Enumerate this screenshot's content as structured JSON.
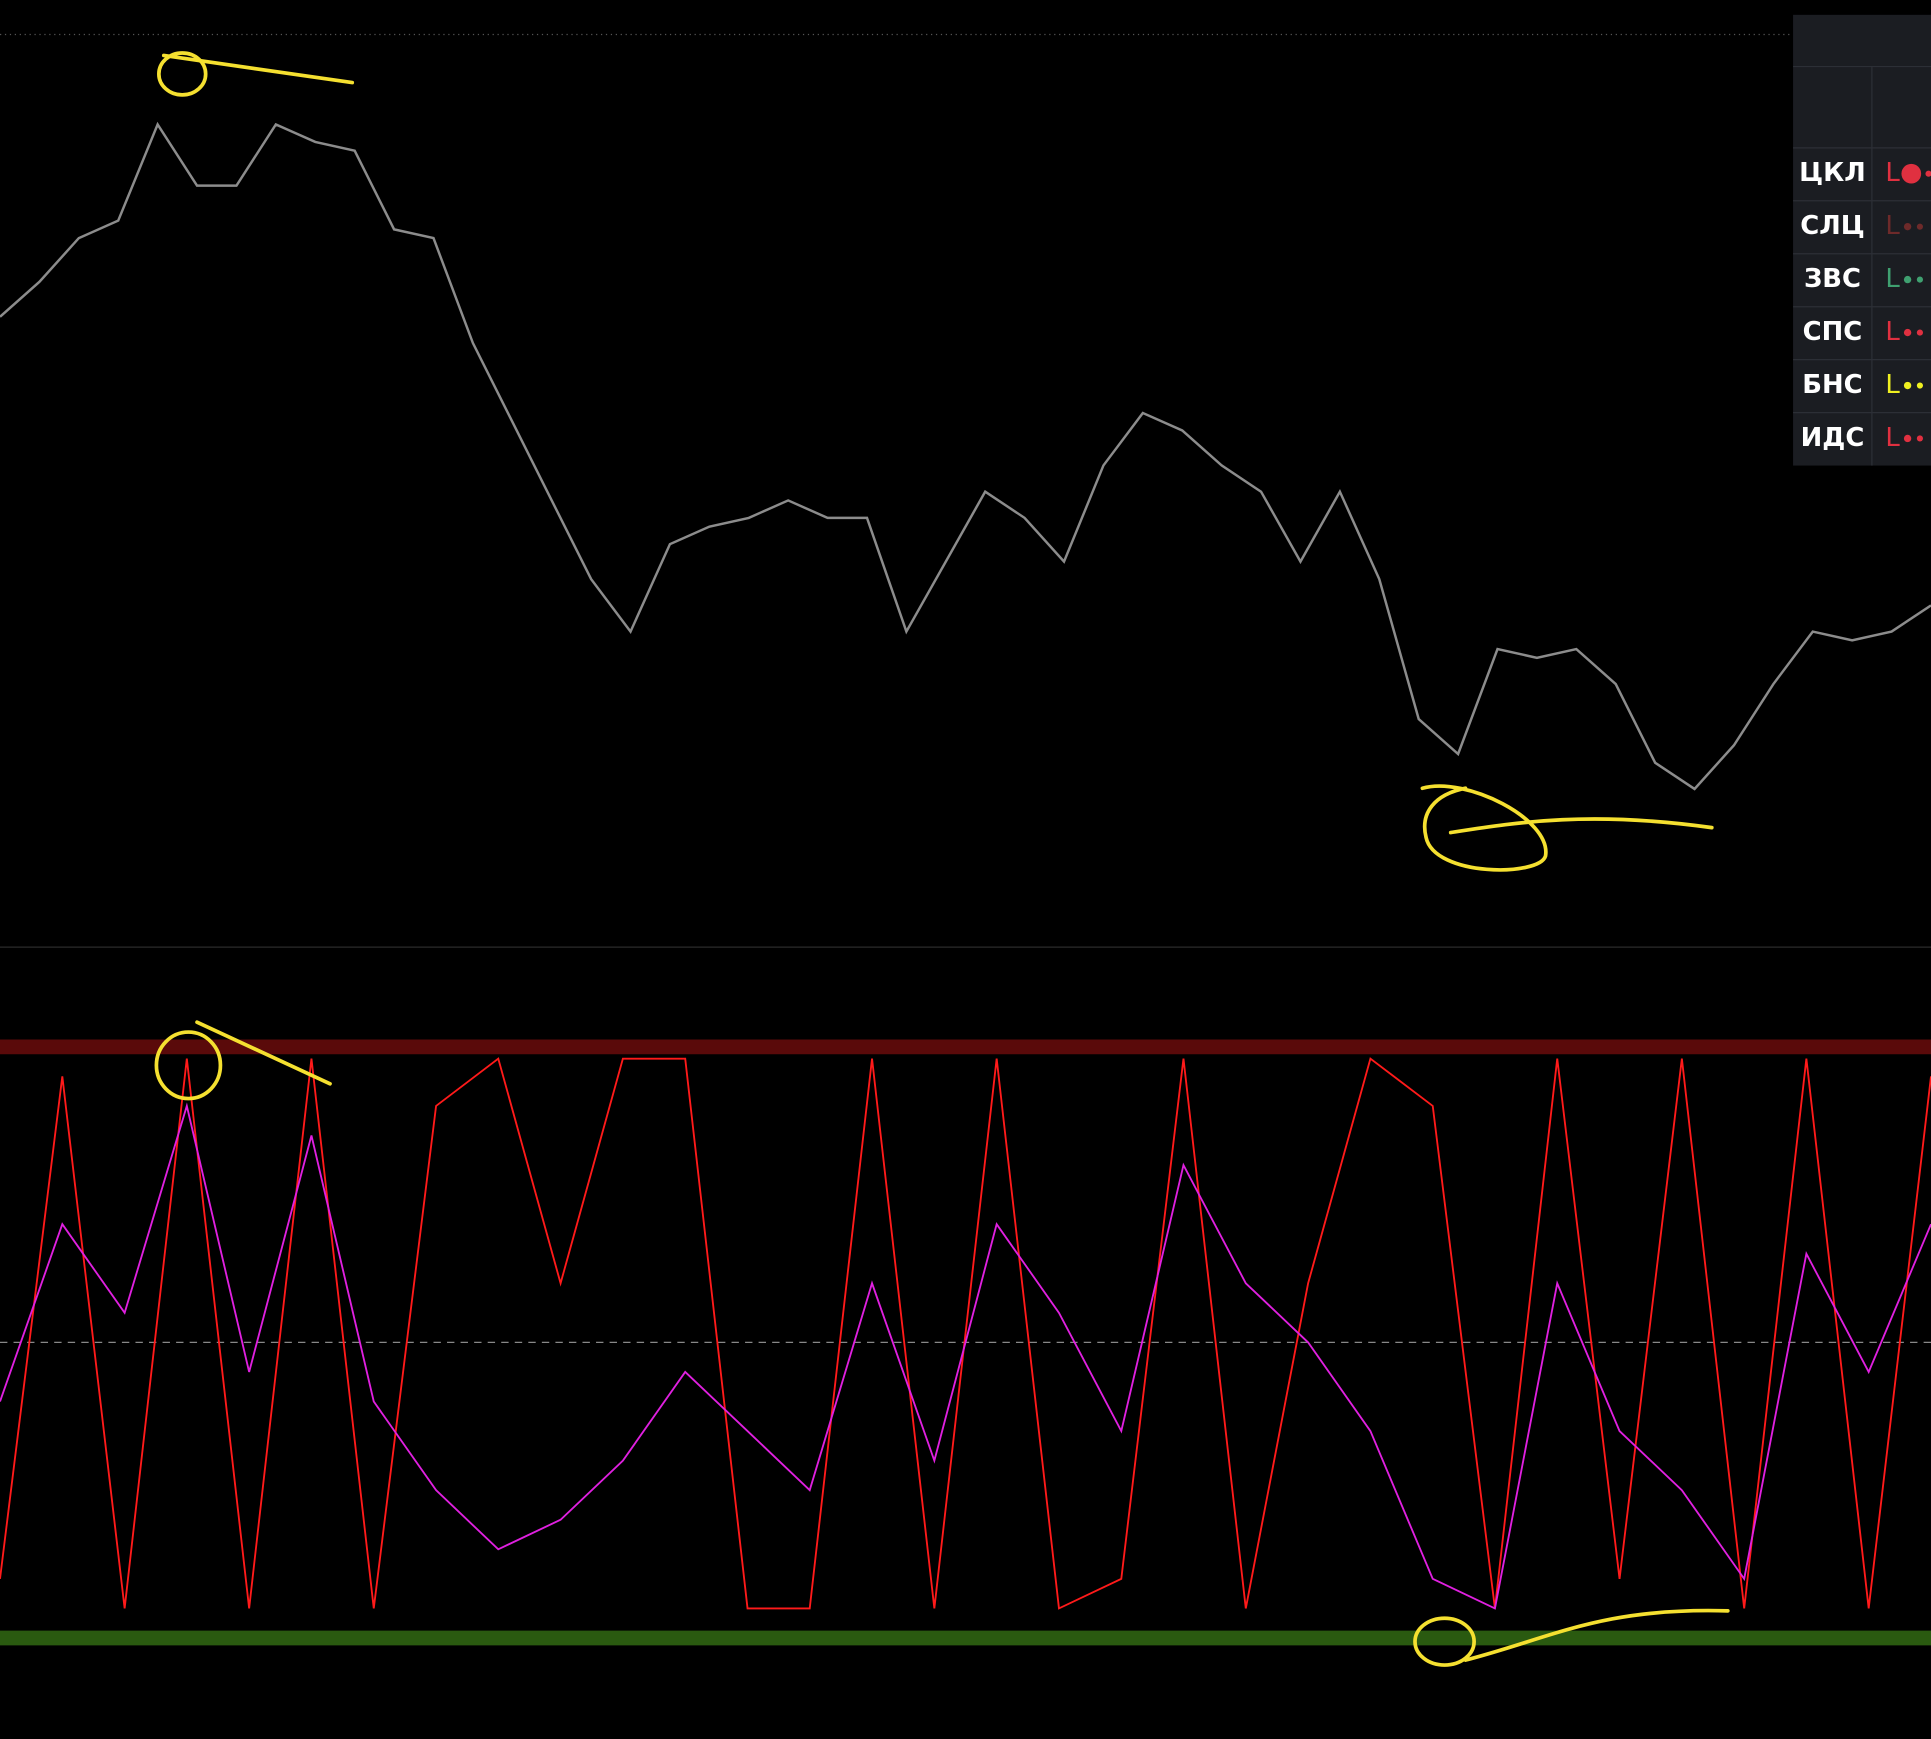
{
  "chart_data": [
    {
      "type": "line",
      "color": "#8c8c8c",
      "ylim": [
        0,
        100
      ],
      "values": [
        68,
        72,
        77,
        79,
        90,
        83,
        83,
        90,
        88,
        87,
        78,
        77,
        65,
        56,
        47,
        38,
        32,
        42,
        44,
        45,
        47,
        45,
        45,
        32,
        40,
        48,
        45,
        40,
        51,
        57,
        55,
        51,
        48,
        40,
        48,
        38,
        22,
        18,
        30,
        29,
        30,
        26,
        17,
        14,
        19,
        26,
        32,
        31,
        32,
        35
      ]
    },
    {
      "type": "line",
      "ylim": [
        0,
        100
      ],
      "levels": [
        0,
        50,
        100
      ],
      "series": [
        {
          "color": "#ff1a1a",
          "values": [
            10,
            95,
            5,
            98,
            5,
            98,
            5,
            90,
            98,
            60,
            98,
            98,
            5,
            5,
            98,
            5,
            98,
            5,
            10,
            98,
            5,
            60,
            98,
            90,
            5,
            98,
            10,
            98,
            5,
            98,
            5,
            95
          ]
        },
        {
          "color": "#e020e0",
          "values": [
            40,
            70,
            55,
            90,
            45,
            85,
            40,
            25,
            15,
            20,
            30,
            45,
            35,
            25,
            60,
            30,
            70,
            55,
            35,
            80,
            60,
            50,
            35,
            10,
            5,
            60,
            35,
            25,
            10,
            65,
            45,
            70
          ]
        }
      ]
    }
  ],
  "table": {
    "rows": [
      {
        "label": "ЦКЛ",
        "signal": "L",
        "color": "#e03040"
      },
      {
        "label": "СЛЦ",
        "signal": "L",
        "color": "#6e2a2a"
      },
      {
        "label": "ЗВС",
        "signal": "L",
        "color": "#3fa070"
      },
      {
        "label": "СПС",
        "signal": "L",
        "color": "#e03040"
      },
      {
        "label": "БНС",
        "signal": "L",
        "color": "#f0f020"
      },
      {
        "label": "ИДС",
        "signal": "L",
        "color": "#e03040"
      }
    ]
  }
}
